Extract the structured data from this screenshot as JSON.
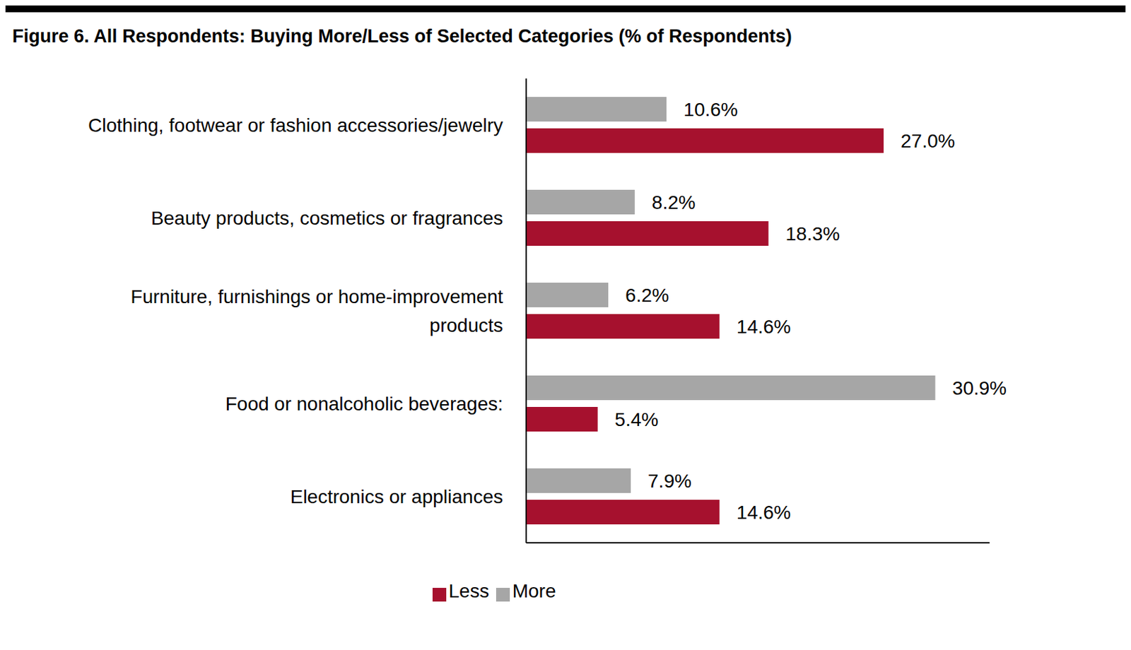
{
  "chart_data": {
    "type": "bar",
    "title": "Figure 6. All Respondents: Buying More/Less of Selected Categories (% of Respondents)",
    "orientation": "horizontal",
    "categories": [
      "Clothing, footwear or fashion accessories/jewelry",
      "Beauty products, cosmetics or fragrances",
      "Furniture, furnishings or home-improvement products",
      "Food or nonalcoholic beverages:",
      "Electronics or appliances"
    ],
    "series": [
      {
        "name": "More",
        "color": "#a6a6a6",
        "values": [
          10.6,
          8.2,
          6.2,
          30.9,
          7.9
        ],
        "value_labels": [
          "10.6%",
          "8.2%",
          "6.2%",
          "30.9%",
          "7.9%"
        ]
      },
      {
        "name": "Less",
        "color": "#a6112e",
        "values": [
          27.0,
          18.3,
          14.6,
          5.4,
          14.6
        ],
        "value_labels": [
          "27.0%",
          "18.3%",
          "14.6%",
          "5.4%",
          "14.6%"
        ]
      }
    ],
    "xlim": [
      0,
      35
    ],
    "xticks": [],
    "grid": false,
    "legend": "bottom",
    "data_labels": true,
    "tick_labels": "y"
  }
}
